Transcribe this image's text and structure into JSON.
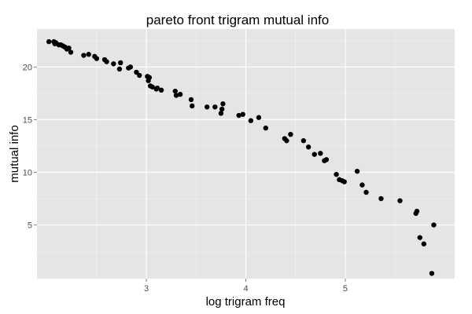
{
  "chart_data": {
    "type": "scatter",
    "title": "pareto front trigram mutual info",
    "xlabel": "log trigram freq",
    "ylabel": "mutual info",
    "xlim": [
      1.9,
      6.1
    ],
    "ylim": [
      -0.1,
      23.6
    ],
    "x_ticks": [
      3,
      4,
      5
    ],
    "y_ticks": [
      5,
      10,
      15,
      20
    ],
    "x_tick_labels": [
      "3",
      "4",
      "5"
    ],
    "y_tick_labels": [
      "5",
      "10",
      "15",
      "20"
    ],
    "grid": true,
    "panel_background": "#e5e5e5",
    "grid_color": "#ffffff",
    "point_color": "#000000",
    "x": [
      2.02,
      2.07,
      2.08,
      2.09,
      2.12,
      2.14,
      2.16,
      2.18,
      2.2,
      2.22,
      2.24,
      2.37,
      2.42,
      2.48,
      2.5,
      2.58,
      2.6,
      2.67,
      2.73,
      2.74,
      2.82,
      2.84,
      2.9,
      2.93,
      3.01,
      3.02,
      3.03,
      3.04,
      3.06,
      3.1,
      3.11,
      3.15,
      3.29,
      3.3,
      3.34,
      3.45,
      3.46,
      3.61,
      3.69,
      3.75,
      3.76,
      3.77,
      3.93,
      3.97,
      4.05,
      4.13,
      4.2,
      4.39,
      4.41,
      4.45,
      4.58,
      4.63,
      4.69,
      4.75,
      4.79,
      4.81,
      4.91,
      4.94,
      4.97,
      4.99,
      5.12,
      5.17,
      5.21,
      5.36,
      5.55,
      5.71,
      5.72,
      5.75,
      5.79,
      5.87,
      5.89
    ],
    "y": [
      22.4,
      22.4,
      22.2,
      22.3,
      22.1,
      22.1,
      22.0,
      21.9,
      21.7,
      21.8,
      21.4,
      21.1,
      21.2,
      21.0,
      20.8,
      20.7,
      20.5,
      20.3,
      19.8,
      20.4,
      19.9,
      20.0,
      19.5,
      19.2,
      19.1,
      18.7,
      19.0,
      18.2,
      18.1,
      17.9,
      18.0,
      17.8,
      17.7,
      17.3,
      17.4,
      16.9,
      16.3,
      16.2,
      16.2,
      15.6,
      16.0,
      16.5,
      15.4,
      15.5,
      14.9,
      15.2,
      14.2,
      13.2,
      13.0,
      13.6,
      13.0,
      12.4,
      11.7,
      11.8,
      11.1,
      11.2,
      9.8,
      9.3,
      9.2,
      9.1,
      10.1,
      8.8,
      8.1,
      7.5,
      7.3,
      6.1,
      6.3,
      3.8,
      3.2,
      0.4,
      5.0
    ]
  }
}
